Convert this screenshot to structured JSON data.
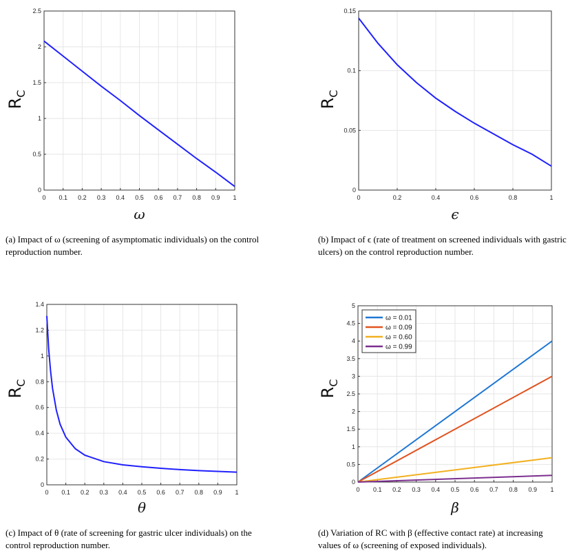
{
  "chart_data": [
    {
      "id": "a",
      "type": "line",
      "ylabel_main": "R",
      "ylabel_sub": "C",
      "xlabel": "ω",
      "xlim": [
        0,
        1
      ],
      "ylim": [
        0,
        2.5
      ],
      "xticks": [
        "0",
        "0.1",
        "0.2",
        "0.3",
        "0.4",
        "0.5",
        "0.6",
        "0.7",
        "0.8",
        "0.9",
        "1"
      ],
      "yticks": [
        "0",
        "0.5",
        "1",
        "1.5",
        "2",
        "2.5"
      ],
      "grid": true,
      "series": [
        {
          "color": "#1f1fff",
          "x": [
            0,
            0.1,
            0.2,
            0.3,
            0.4,
            0.5,
            0.6,
            0.7,
            0.8,
            0.9,
            1.0
          ],
          "y": [
            2.08,
            1.87,
            1.66,
            1.45,
            1.25,
            1.04,
            0.84,
            0.64,
            0.44,
            0.25,
            0.05
          ]
        }
      ],
      "caption": "(a) Impact of ω (screening of asymptomatic individuals) on the control reproduction number."
    },
    {
      "id": "b",
      "type": "line",
      "ylabel_main": "R",
      "ylabel_sub": "C",
      "xlabel": "ϵ",
      "xlim": [
        0,
        1
      ],
      "ylim": [
        0,
        0.15
      ],
      "xticks": [
        "0",
        "0.2",
        "0.4",
        "0.6",
        "0.8",
        "1"
      ],
      "yticks": [
        "0",
        "0.05",
        "0.1",
        "0.15"
      ],
      "grid": true,
      "series": [
        {
          "color": "#1f1fff",
          "x": [
            0,
            0.1,
            0.2,
            0.3,
            0.4,
            0.5,
            0.6,
            0.7,
            0.8,
            0.9,
            1.0
          ],
          "y": [
            0.144,
            0.123,
            0.105,
            0.09,
            0.077,
            0.066,
            0.056,
            0.047,
            0.038,
            0.03,
            0.02
          ]
        }
      ],
      "caption": "(b) Impact of ϵ (rate of treatment on screened individuals with gastric ulcers) on the control reproduction number."
    },
    {
      "id": "c",
      "type": "line",
      "ylabel_main": "R",
      "ylabel_sub": "C",
      "xlabel": "θ",
      "xlim": [
        0,
        1
      ],
      "ylim": [
        0,
        1.4
      ],
      "xticks": [
        "0",
        "0.1",
        "0.2",
        "0.3",
        "0.4",
        "0.5",
        "0.6",
        "0.7",
        "0.8",
        "0.9",
        "1"
      ],
      "yticks": [
        "0",
        "0.2",
        "0.4",
        "0.6",
        "0.8",
        "1",
        "1.2",
        "1.4"
      ],
      "grid": true,
      "series": [
        {
          "color": "#1f1fff",
          "x": [
            0,
            0.01,
            0.02,
            0.03,
            0.05,
            0.07,
            0.1,
            0.15,
            0.2,
            0.3,
            0.4,
            0.5,
            0.6,
            0.7,
            0.8,
            0.9,
            1.0
          ],
          "y": [
            1.31,
            1.05,
            0.88,
            0.75,
            0.58,
            0.47,
            0.37,
            0.28,
            0.23,
            0.18,
            0.155,
            0.14,
            0.128,
            0.118,
            0.11,
            0.104,
            0.098
          ]
        }
      ],
      "caption": "(c) Impact of θ (rate of screening for gastric ulcer individuals) on the control reproduction number."
    },
    {
      "id": "d",
      "type": "line",
      "ylabel_main": "R",
      "ylabel_sub": "C",
      "xlabel": "β",
      "xlim": [
        0,
        1
      ],
      "ylim": [
        0,
        5
      ],
      "xticks": [
        "0",
        "0.1",
        "0.2",
        "0.3",
        "0.4",
        "0.5",
        "0.6",
        "0.7",
        "0.8",
        "0.9",
        "1"
      ],
      "yticks": [
        "0",
        "0.5",
        "1",
        "1.5",
        "2",
        "2.5",
        "3",
        "3.5",
        "4",
        "4.5",
        "5"
      ],
      "grid": true,
      "legend_position": "top-left",
      "series": [
        {
          "name": "ω = 0.01",
          "color": "#1f77d4",
          "x": [
            0,
            1
          ],
          "y": [
            0,
            4.0
          ]
        },
        {
          "name": "ω = 0.09",
          "color": "#e0531f",
          "x": [
            0,
            1
          ],
          "y": [
            0,
            3.0
          ]
        },
        {
          "name": "ω = 0.60",
          "color": "#f2b01e",
          "x": [
            0,
            1
          ],
          "y": [
            0,
            0.69
          ]
        },
        {
          "name": "ω = 0.99",
          "color": "#7b2e8e",
          "x": [
            0,
            1
          ],
          "y": [
            0,
            0.19
          ]
        }
      ],
      "caption": "(d) Variation of RC with β (effective contact rate) at increasing values of ω (screening of exposed individuals)."
    }
  ]
}
